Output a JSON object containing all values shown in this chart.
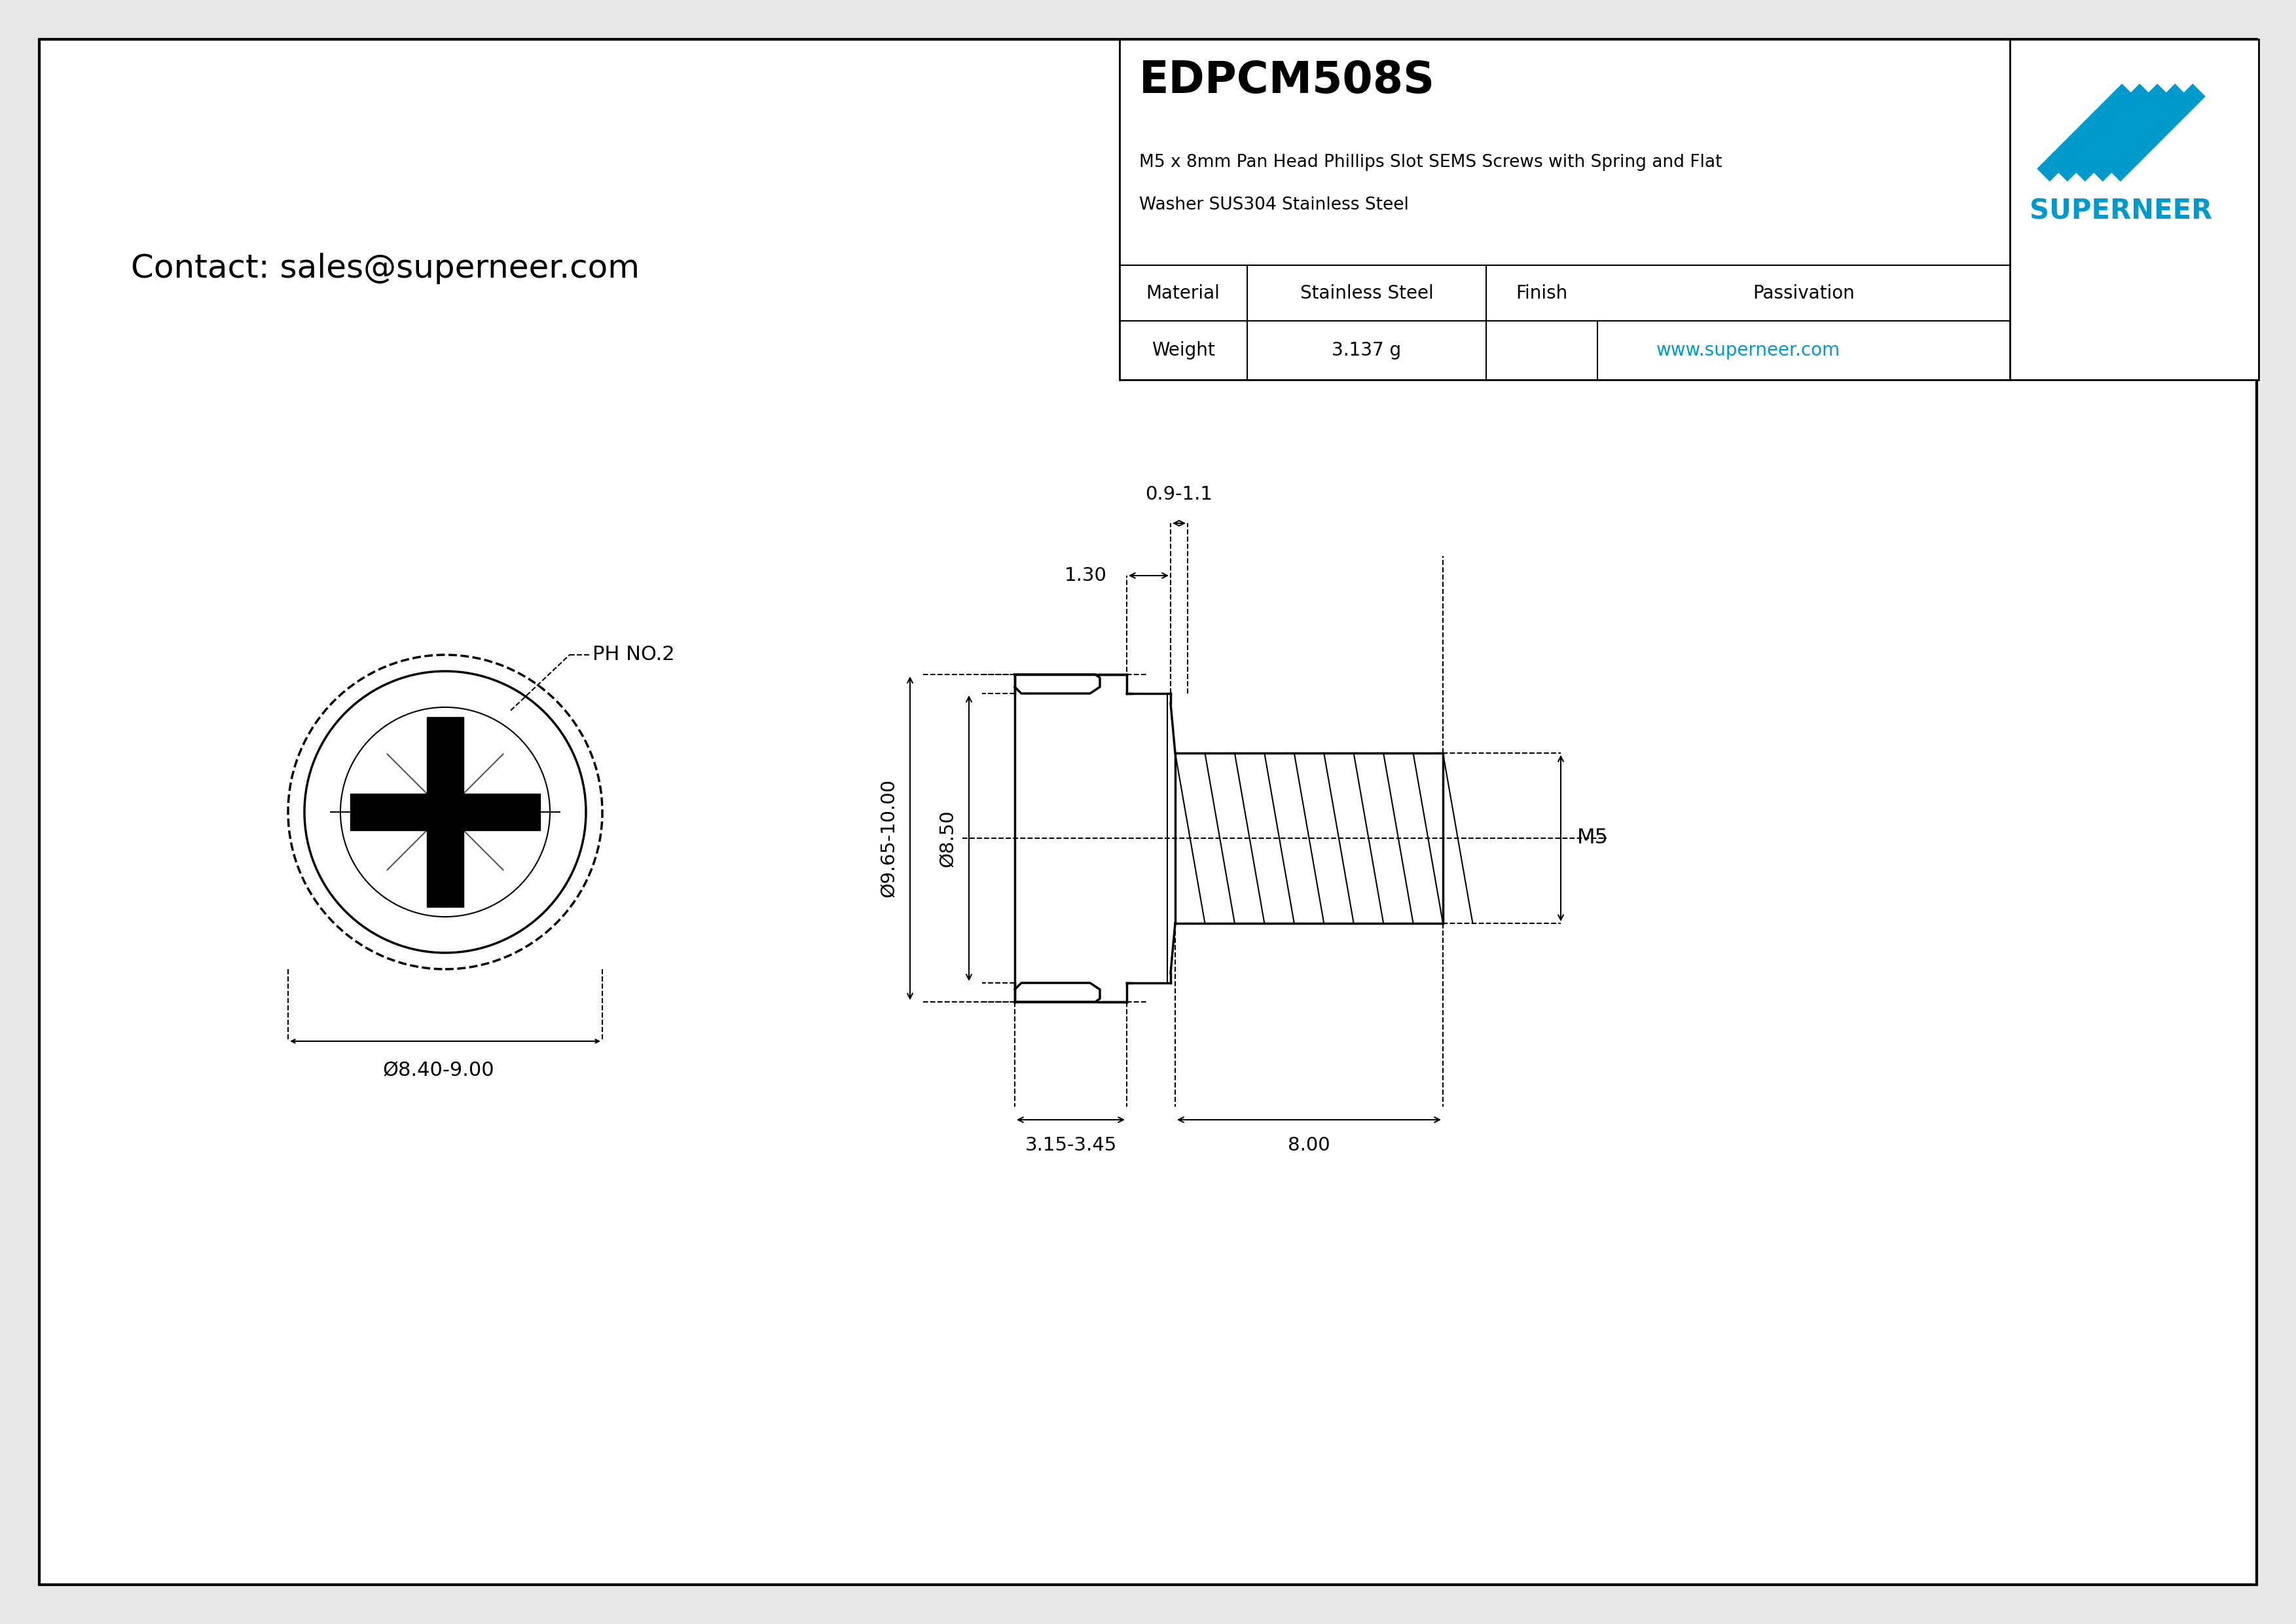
{
  "bg_color": "#e8e8e8",
  "drawing_bg": "#ffffff",
  "line_color": "#000000",
  "border_color": "#000000",
  "title_box": {
    "product_code": "EDPCM508S",
    "description_line1": "M5 x 8mm Pan Head Phillips Slot SEMS Screws with Spring and Flat",
    "description_line2": "Washer SUS304 Stainless Steel",
    "material_label": "Material",
    "material_value": "Stainless Steel",
    "finish_label": "Finish",
    "finish_value": "Passivation",
    "weight_label": "Weight",
    "weight_value": "3.137 g",
    "website": "www.superneer.com",
    "brand": "SUPERNEER",
    "brand_color": "#0099cc"
  },
  "contact": "Contact: sales@superneer.com",
  "dimensions": {
    "diameter_head": "8.40-9.00",
    "diameter_washer": "Ø9.65-10.00",
    "diameter_screw": "Ø8.50",
    "washer_thickness": "3.15-3.45",
    "screw_length": "8.00",
    "top_dim1": "0.9-1.1",
    "top_dim2": "1.30",
    "thread_label": "M5",
    "ph_label": "PH NO.2"
  }
}
